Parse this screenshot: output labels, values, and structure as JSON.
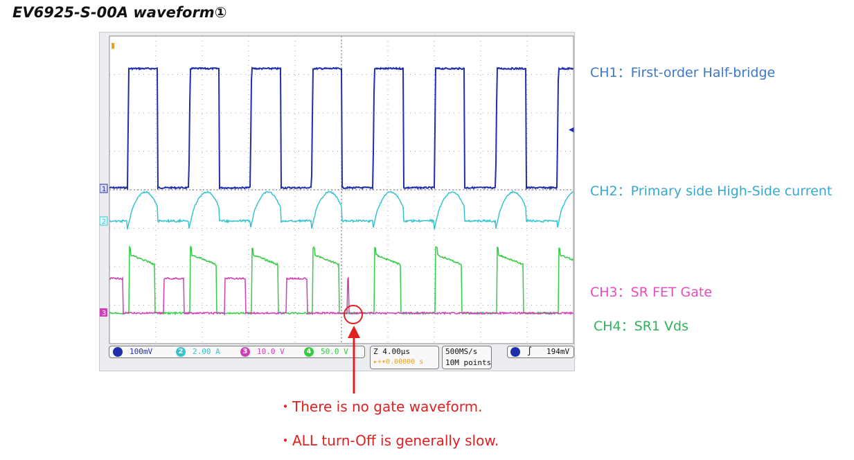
{
  "title": "EV6925-S-00A waveform①",
  "channel_labels": {
    "ch1": "CH1：First-order Half-bridge",
    "ch2": "CH2：Primary side High-Side current",
    "ch3": "CH3：SR FET Gate",
    "ch4": "CH4：SR1 Vds"
  },
  "scope": {
    "markers": {
      "ch1": "1",
      "ch2": "2",
      "ch3": "3"
    },
    "status": {
      "ch1_scale": "100mV",
      "ch2_num": "2",
      "ch2_scale": "2.00 A",
      "ch3_num": "3",
      "ch3_scale": "10.0 V",
      "ch4_num": "4",
      "ch4_scale": "50.0 V",
      "timebase": "Z 4.00μs",
      "delay": "▸+▾0.00000 s",
      "sample_rate": "500MS/s",
      "record_length": "10M points",
      "trigger_level": "194mV"
    }
  },
  "notes": [
    "・There is no gate waveform.",
    "・ALL turn-Off is generally slow."
  ],
  "colors": {
    "ch1": "#1f2fa8",
    "ch2": "#35c4cf",
    "ch3": "#cf3fb8",
    "ch4": "#33cc44",
    "annotation": "#e02020",
    "label_ch1": "#3a78c9",
    "label_ch2": "#36a8cf",
    "label_ch3": "#e64bbd",
    "label_ch4": "#2fb25a"
  }
}
